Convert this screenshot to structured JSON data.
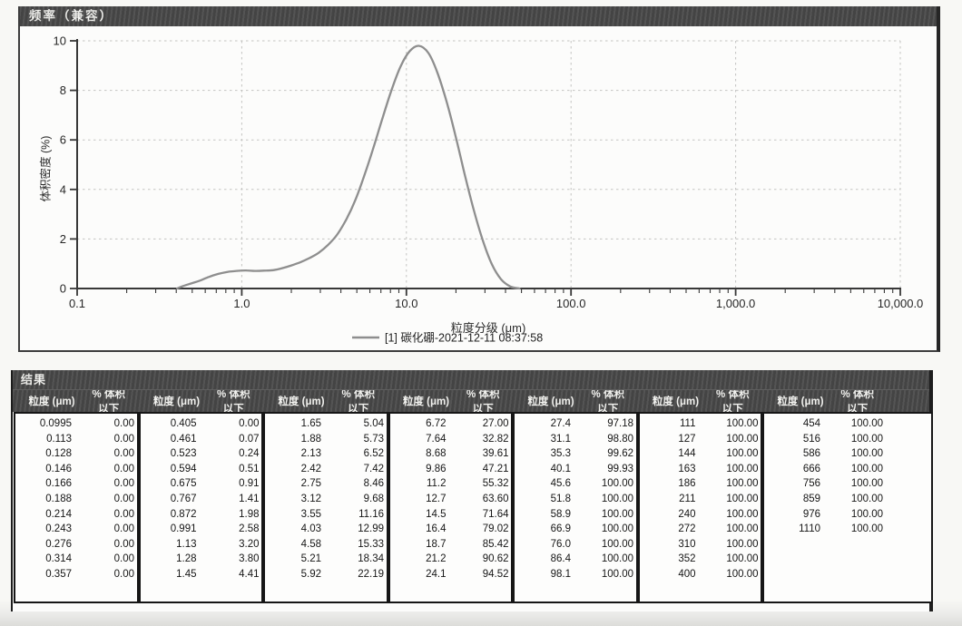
{
  "chart_panel": {
    "title": "频率（兼容）"
  },
  "chart_data": {
    "type": "line",
    "title": "频率（兼容）",
    "xlabel": "粒度分级 (μm)",
    "ylabel": "体积密度 (%)",
    "x_scale": "log",
    "xlim": [
      0.1,
      10000
    ],
    "ylim": [
      0,
      10
    ],
    "grid": true,
    "legend_position": "bottom",
    "legend": "[1] 碳化硼-2021-12-11 08:37:58",
    "x_ticks": [
      {
        "v": 0.1,
        "label": "0.1"
      },
      {
        "v": 1,
        "label": "1.0"
      },
      {
        "v": 10,
        "label": "10.0"
      },
      {
        "v": 100,
        "label": "100.0"
      },
      {
        "v": 1000,
        "label": "1,000.0"
      },
      {
        "v": 10000,
        "label": "10,000.0"
      }
    ],
    "y_ticks": [
      {
        "v": 0,
        "label": "0"
      },
      {
        "v": 2,
        "label": "2"
      },
      {
        "v": 4,
        "label": "4"
      },
      {
        "v": 6,
        "label": "6"
      },
      {
        "v": 8,
        "label": "8"
      },
      {
        "v": 10,
        "label": "10"
      }
    ],
    "series": [
      {
        "name": "[1] 碳化硼-2021-12-11 08:37:58",
        "color": "#8e8e8e",
        "points": [
          [
            0.405,
            0
          ],
          [
            0.432,
            0.08
          ],
          [
            0.491,
            0.2
          ],
          [
            0.557,
            0.32
          ],
          [
            0.633,
            0.47
          ],
          [
            0.72,
            0.59
          ],
          [
            0.818,
            0.67
          ],
          [
            0.93,
            0.71
          ],
          [
            1.06,
            0.73
          ],
          [
            1.2,
            0.71
          ],
          [
            1.36,
            0.72
          ],
          [
            1.55,
            0.74
          ],
          [
            1.76,
            0.82
          ],
          [
            2.0,
            0.93
          ],
          [
            2.27,
            1.06
          ],
          [
            2.58,
            1.23
          ],
          [
            2.93,
            1.44
          ],
          [
            3.33,
            1.75
          ],
          [
            3.78,
            2.16
          ],
          [
            4.3,
            2.77
          ],
          [
            4.89,
            3.56
          ],
          [
            5.55,
            4.56
          ],
          [
            6.31,
            5.69
          ],
          [
            7.17,
            6.89
          ],
          [
            8.14,
            8.03
          ],
          [
            9.25,
            8.99
          ],
          [
            10.5,
            9.59
          ],
          [
            11.9,
            9.8
          ],
          [
            13.6,
            9.51
          ],
          [
            15.4,
            8.73
          ],
          [
            17.5,
            7.57
          ],
          [
            19.9,
            6.15
          ],
          [
            22.6,
            4.61
          ],
          [
            25.7,
            3.15
          ],
          [
            29.2,
            1.92
          ],
          [
            33.1,
            0.97
          ],
          [
            37.6,
            0.37
          ],
          [
            42.8,
            0.08
          ],
          [
            48.6,
            0
          ]
        ]
      }
    ]
  },
  "table": {
    "panel_title": "结果",
    "size_header": "粒度 (μm)",
    "pct_header": "% 体积 以下",
    "groups": [
      {
        "rows": [
          [
            "0.0995",
            "0.00"
          ],
          [
            "0.113",
            "0.00"
          ],
          [
            "0.128",
            "0.00"
          ],
          [
            "0.146",
            "0.00"
          ],
          [
            "0.166",
            "0.00"
          ],
          [
            "0.188",
            "0.00"
          ],
          [
            "0.214",
            "0.00"
          ],
          [
            "0.243",
            "0.00"
          ],
          [
            "0.276",
            "0.00"
          ],
          [
            "0.314",
            "0.00"
          ],
          [
            "0.357",
            "0.00"
          ]
        ]
      },
      {
        "rows": [
          [
            "0.405",
            "0.00"
          ],
          [
            "0.461",
            "0.07"
          ],
          [
            "0.523",
            "0.24"
          ],
          [
            "0.594",
            "0.51"
          ],
          [
            "0.675",
            "0.91"
          ],
          [
            "0.767",
            "1.41"
          ],
          [
            "0.872",
            "1.98"
          ],
          [
            "0.991",
            "2.58"
          ],
          [
            "1.13",
            "3.20"
          ],
          [
            "1.28",
            "3.80"
          ],
          [
            "1.45",
            "4.41"
          ]
        ]
      },
      {
        "rows": [
          [
            "1.65",
            "5.04"
          ],
          [
            "1.88",
            "5.73"
          ],
          [
            "2.13",
            "6.52"
          ],
          [
            "2.42",
            "7.42"
          ],
          [
            "2.75",
            "8.46"
          ],
          [
            "3.12",
            "9.68"
          ],
          [
            "3.55",
            "11.16"
          ],
          [
            "4.03",
            "12.99"
          ],
          [
            "4.58",
            "15.33"
          ],
          [
            "5.21",
            "18.34"
          ],
          [
            "5.92",
            "22.19"
          ]
        ]
      },
      {
        "rows": [
          [
            "6.72",
            "27.00"
          ],
          [
            "7.64",
            "32.82"
          ],
          [
            "8.68",
            "39.61"
          ],
          [
            "9.86",
            "47.21"
          ],
          [
            "11.2",
            "55.32"
          ],
          [
            "12.7",
            "63.60"
          ],
          [
            "14.5",
            "71.64"
          ],
          [
            "16.4",
            "79.02"
          ],
          [
            "18.7",
            "85.42"
          ],
          [
            "21.2",
            "90.62"
          ],
          [
            "24.1",
            "94.52"
          ]
        ]
      },
      {
        "rows": [
          [
            "27.4",
            "97.18"
          ],
          [
            "31.1",
            "98.80"
          ],
          [
            "35.3",
            "99.62"
          ],
          [
            "40.1",
            "99.93"
          ],
          [
            "45.6",
            "100.00"
          ],
          [
            "51.8",
            "100.00"
          ],
          [
            "58.9",
            "100.00"
          ],
          [
            "66.9",
            "100.00"
          ],
          [
            "76.0",
            "100.00"
          ],
          [
            "86.4",
            "100.00"
          ],
          [
            "98.1",
            "100.00"
          ]
        ]
      },
      {
        "rows": [
          [
            "111",
            "100.00"
          ],
          [
            "127",
            "100.00"
          ],
          [
            "144",
            "100.00"
          ],
          [
            "163",
            "100.00"
          ],
          [
            "186",
            "100.00"
          ],
          [
            "211",
            "100.00"
          ],
          [
            "240",
            "100.00"
          ],
          [
            "272",
            "100.00"
          ],
          [
            "310",
            "100.00"
          ],
          [
            "352",
            "100.00"
          ],
          [
            "400",
            "100.00"
          ]
        ]
      },
      {
        "rows": [
          [
            "454",
            "100.00"
          ],
          [
            "516",
            "100.00"
          ],
          [
            "586",
            "100.00"
          ],
          [
            "666",
            "100.00"
          ],
          [
            "756",
            "100.00"
          ],
          [
            "859",
            "100.00"
          ],
          [
            "976",
            "100.00"
          ],
          [
            "1110",
            "100.00"
          ]
        ]
      }
    ]
  }
}
